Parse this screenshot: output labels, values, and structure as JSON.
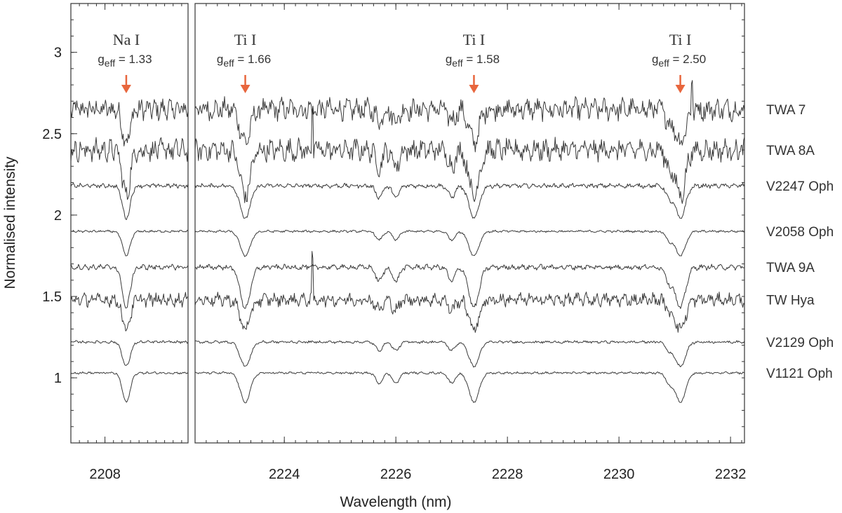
{
  "chart_data": {
    "type": "line",
    "xlabel": "Wavelength (nm)",
    "ylabel": "Normalised intensity",
    "ylim": [
      0.6,
      3.3
    ],
    "y_ticks": [
      "1",
      "1.5",
      "2",
      "2.5",
      "3"
    ],
    "panels": [
      {
        "name": "left",
        "xlim": [
          2207.2,
          2209.95
        ],
        "x_ticks": [
          "2208"
        ]
      },
      {
        "name": "right",
        "xlim": [
          2222.4,
          2232.25
        ],
        "x_ticks": [
          "2224",
          "2226",
          "2228",
          "2230",
          "2232"
        ]
      }
    ],
    "lines": [
      {
        "name": "Na I",
        "geff_label": "g",
        "geff_sub": "eff",
        "geff_value": "= 1.33",
        "wavelength": 2208.5,
        "arrow_color": "#e8663d"
      },
      {
        "name": "Ti I",
        "geff_label": "g",
        "geff_sub": "eff",
        "geff_value": "= 1.66",
        "wavelength": 2223.3,
        "arrow_color": "#e8663d"
      },
      {
        "name": "Ti I",
        "geff_label": "g",
        "geff_sub": "eff",
        "geff_value": "= 1.58",
        "wavelength": 2227.4,
        "arrow_color": "#e8663d"
      },
      {
        "name": "Ti I",
        "geff_label": "g",
        "geff_sub": "eff",
        "geff_value": "= 2.50",
        "wavelength": 2231.1,
        "arrow_color": "#e8663d"
      }
    ],
    "series": [
      {
        "name": "TWA 7",
        "offset": 2.65,
        "depth": 0.2,
        "noise": 0.05,
        "spike": [
          2231.3,
          0.2
        ]
      },
      {
        "name": "TWA 8A",
        "offset": 2.4,
        "depth": 0.28,
        "noise": 0.05,
        "spike": [
          2224.5,
          0.25
        ]
      },
      {
        "name": "V2247 Oph",
        "offset": 2.18,
        "depth": 0.2,
        "noise": 0.01
      },
      {
        "name": "V2058 Oph",
        "offset": 1.9,
        "depth": 0.15,
        "noise": 0.005
      },
      {
        "name": "TWA 9A",
        "offset": 1.68,
        "depth": 0.25,
        "noise": 0.012
      },
      {
        "name": "TW Hya",
        "offset": 1.48,
        "depth": 0.18,
        "noise": 0.03,
        "spike": [
          2224.5,
          0.25
        ]
      },
      {
        "name": "V2129 Oph",
        "offset": 1.22,
        "depth": 0.15,
        "noise": 0.006
      },
      {
        "name": "V1121 Oph",
        "offset": 1.03,
        "depth": 0.18,
        "noise": 0.005
      }
    ]
  }
}
